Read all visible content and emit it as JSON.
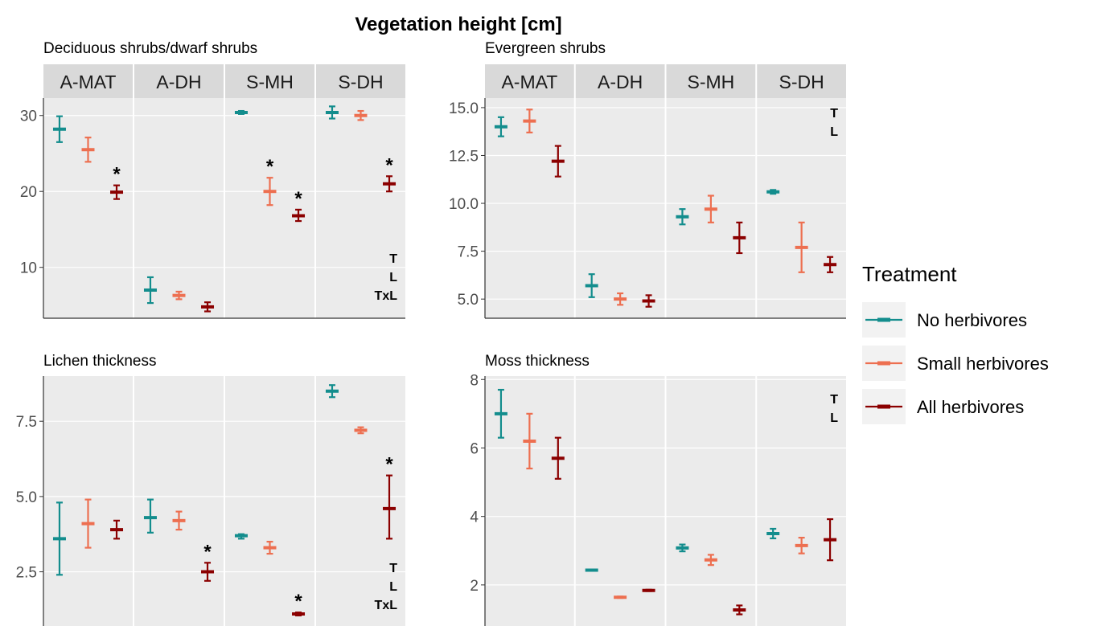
{
  "title": "Vegetation height [cm]",
  "colors": {
    "no": "#138d8d",
    "small": "#ed6f50",
    "all": "#8b0000",
    "panel_bg": "#ebebeb",
    "strip_bg": "#d9d9d9"
  },
  "legend": {
    "title": "Treatment",
    "items": [
      {
        "label": "No herbivores",
        "color": "#138d8d"
      },
      {
        "label": "Small herbivores",
        "color": "#ed6f50"
      },
      {
        "label": "All herbivores",
        "color": "#8b0000"
      }
    ]
  },
  "chart_data": [
    {
      "type": "scatter",
      "title": "Deciduous shrubs/dwarf shrubs",
      "facets": [
        "A-MAT",
        "A-DH",
        "S-MH",
        "S-DH"
      ],
      "series_order": [
        "No herbivores",
        "Small herbivores",
        "All herbivores"
      ],
      "ylim": [
        3.3,
        32.3
      ],
      "yticks": [
        10,
        20,
        30
      ],
      "ytick_labels": [
        "10",
        "20",
        "30"
      ],
      "facet_data": [
        {
          "means": [
            28.2,
            25.5,
            19.9
          ],
          "lower": [
            26.5,
            23.9,
            19.0
          ],
          "upper": [
            29.9,
            27.1,
            20.8
          ],
          "stars": [
            false,
            false,
            true
          ],
          "sig": []
        },
        {
          "means": [
            7.0,
            6.3,
            4.8
          ],
          "lower": [
            5.3,
            5.8,
            4.2
          ],
          "upper": [
            8.7,
            6.8,
            5.4
          ],
          "stars": [
            false,
            false,
            false
          ],
          "sig": []
        },
        {
          "means": [
            30.4,
            20.0,
            16.8
          ],
          "lower": [
            30.2,
            18.2,
            16.1
          ],
          "upper": [
            30.6,
            21.8,
            17.6
          ],
          "stars": [
            false,
            true,
            true
          ],
          "sig": []
        },
        {
          "means": [
            30.4,
            30.0,
            21.0
          ],
          "lower": [
            29.6,
            29.4,
            20.0
          ],
          "upper": [
            31.2,
            30.6,
            22.0
          ],
          "stars": [
            false,
            false,
            true
          ],
          "sig": [
            "T",
            "L",
            "TxL"
          ]
        }
      ]
    },
    {
      "type": "scatter",
      "title": "Evergreen shrubs",
      "facets": [
        "A-MAT",
        "A-DH",
        "S-MH",
        "S-DH"
      ],
      "series_order": [
        "No herbivores",
        "Small herbivores",
        "All herbivores"
      ],
      "ylim": [
        4.0,
        15.5
      ],
      "yticks": [
        5.0,
        7.5,
        10.0,
        12.5,
        15.0
      ],
      "ytick_labels": [
        "5.0",
        "7.5",
        "10.0",
        "12.5",
        "15.0"
      ],
      "facet_data": [
        {
          "means": [
            14.0,
            14.3,
            12.2
          ],
          "lower": [
            13.5,
            13.7,
            11.4
          ],
          "upper": [
            14.5,
            14.9,
            13.0
          ],
          "stars": [
            false,
            false,
            false
          ],
          "sig": []
        },
        {
          "means": [
            5.7,
            5.0,
            4.9
          ],
          "lower": [
            5.1,
            4.7,
            4.6
          ],
          "upper": [
            6.3,
            5.3,
            5.2
          ],
          "stars": [
            false,
            false,
            false
          ],
          "sig": []
        },
        {
          "means": [
            9.3,
            9.7,
            8.2
          ],
          "lower": [
            8.9,
            9.0,
            7.4
          ],
          "upper": [
            9.7,
            10.4,
            9.0
          ],
          "stars": [
            false,
            false,
            false
          ],
          "sig": []
        },
        {
          "means": [
            10.6,
            7.7,
            6.8
          ],
          "lower": [
            10.5,
            6.4,
            6.4
          ],
          "upper": [
            10.7,
            9.0,
            7.2
          ],
          "stars": [
            false,
            false,
            false
          ],
          "sig": [
            "T",
            "L"
          ]
        }
      ]
    },
    {
      "type": "scatter",
      "title": "Lichen thickness",
      "facets": [
        "A-MAT",
        "A-DH",
        "S-MH",
        "S-DH"
      ],
      "series_order": [
        "No herbivores",
        "Small herbivores",
        "All herbivores"
      ],
      "ylim": [
        0.7,
        9.0
      ],
      "yticks": [
        2.5,
        5.0,
        7.5
      ],
      "ytick_labels": [
        "2.5",
        "5.0",
        "7.5"
      ],
      "facet_data": [
        {
          "means": [
            3.6,
            4.1,
            3.9
          ],
          "lower": [
            2.4,
            3.3,
            3.6
          ],
          "upper": [
            4.8,
            4.9,
            4.2
          ],
          "stars": [
            false,
            false,
            false
          ],
          "sig": []
        },
        {
          "means": [
            4.3,
            4.2,
            2.5
          ],
          "lower": [
            3.8,
            3.9,
            2.2
          ],
          "upper": [
            4.9,
            4.5,
            2.8
          ],
          "stars": [
            false,
            false,
            true
          ],
          "sig": []
        },
        {
          "means": [
            3.7,
            3.3,
            1.1
          ],
          "lower": [
            3.6,
            3.1,
            1.05
          ],
          "upper": [
            3.75,
            3.5,
            1.15
          ],
          "stars": [
            false,
            false,
            true
          ],
          "sig": []
        },
        {
          "means": [
            8.5,
            7.2,
            4.6
          ],
          "lower": [
            8.3,
            7.1,
            3.6
          ],
          "upper": [
            8.7,
            7.3,
            5.7
          ],
          "stars": [
            false,
            false,
            true
          ],
          "sig": [
            "T",
            "L",
            "TxL"
          ]
        }
      ]
    },
    {
      "type": "scatter",
      "title": "Moss thickness",
      "facets": [
        "A-MAT",
        "A-DH",
        "S-MH",
        "S-DH"
      ],
      "series_order": [
        "No herbivores",
        "Small herbivores",
        "All herbivores"
      ],
      "ylim": [
        0.8,
        8.1
      ],
      "yticks": [
        2,
        4,
        6,
        8
      ],
      "ytick_labels": [
        "2",
        "4",
        "6",
        "8"
      ],
      "facet_data": [
        {
          "means": [
            7.0,
            6.2,
            5.7
          ],
          "lower": [
            6.3,
            5.4,
            5.1
          ],
          "upper": [
            7.7,
            7.0,
            6.3
          ],
          "stars": [
            false,
            false,
            false
          ],
          "sig": []
        },
        {
          "means": [
            2.43,
            1.64,
            1.84
          ],
          "lower": [
            2.41,
            1.62,
            1.82
          ],
          "upper": [
            2.45,
            1.66,
            1.86
          ],
          "stars": [
            false,
            false,
            false
          ],
          "sig": []
        },
        {
          "means": [
            3.08,
            2.73,
            1.27
          ],
          "lower": [
            2.98,
            2.58,
            1.14
          ],
          "upper": [
            3.18,
            2.88,
            1.4
          ],
          "stars": [
            false,
            false,
            false
          ],
          "sig": []
        },
        {
          "means": [
            3.5,
            3.15,
            3.32
          ],
          "lower": [
            3.36,
            2.92,
            2.72
          ],
          "upper": [
            3.64,
            3.38,
            3.92
          ],
          "stars": [
            false,
            false,
            false
          ],
          "sig": [
            "T",
            "L"
          ]
        }
      ]
    }
  ]
}
